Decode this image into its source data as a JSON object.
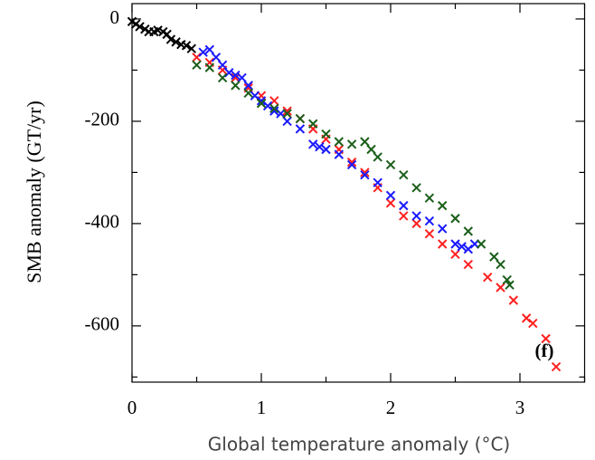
{
  "chart_data": {
    "type": "scatter",
    "x_label": "Global temperature anomaly (°C)",
    "y_label": "SMB anomaly (GT/yr)",
    "annotation": "(f)",
    "xlim": [
      0,
      3.5
    ],
    "ylim": [
      -710,
      30
    ],
    "xticks": [
      0,
      1,
      2,
      3
    ],
    "yticks": [
      0,
      -200,
      -400,
      -600
    ],
    "xminorticks": [
      0.5,
      1.5,
      2.5,
      3.5
    ],
    "yminorticks": [
      -100,
      -300,
      -500,
      -700
    ],
    "series": [
      {
        "color": "#000000",
        "x": [
          0,
          0.03,
          0.06,
          0.1,
          0.13,
          0.17,
          0.2,
          0.24,
          0.27,
          0.3,
          0.34,
          0.38,
          0.42,
          0.46
        ],
        "values": [
          -5,
          -10,
          -15,
          -20,
          -25,
          -25,
          -22,
          -25,
          -30,
          -40,
          -45,
          -50,
          -52,
          -58
        ]
      },
      {
        "color": "#ff2020",
        "x": [
          0.5,
          0.6,
          0.7,
          0.8,
          0.9,
          1.0,
          1.1,
          1.2,
          1.3,
          1.4,
          1.5,
          1.6,
          1.7,
          1.8,
          1.9,
          2.0,
          2.1,
          2.2,
          2.3,
          2.4,
          2.5,
          2.6,
          2.75,
          2.85,
          2.95,
          3.05,
          3.1,
          3.2,
          3.28
        ],
        "values": [
          -75,
          -85,
          -100,
          -115,
          -135,
          -150,
          -160,
          -180,
          -195,
          -215,
          -235,
          -255,
          -280,
          -300,
          -330,
          -360,
          -385,
          -400,
          -420,
          -440,
          -460,
          -480,
          -505,
          -525,
          -550,
          -585,
          -595,
          -625,
          -680
        ]
      },
      {
        "color": "#1a1aff",
        "x": [
          0.55,
          0.6,
          0.65,
          0.7,
          0.75,
          0.8,
          0.85,
          0.9,
          0.95,
          1.0,
          1.05,
          1.1,
          1.15,
          1.2,
          1.3,
          1.4,
          1.45,
          1.5,
          1.6,
          1.7,
          1.8,
          1.9,
          2.0,
          2.1,
          2.2,
          2.3,
          2.4,
          2.5,
          2.55,
          2.6,
          2.65
        ],
        "values": [
          -65,
          -60,
          -75,
          -90,
          -105,
          -110,
          -115,
          -130,
          -150,
          -160,
          -170,
          -180,
          -185,
          -200,
          -215,
          -245,
          -250,
          -255,
          -265,
          -285,
          -305,
          -320,
          -345,
          -365,
          -385,
          -395,
          -410,
          -440,
          -445,
          -450,
          -440
        ]
      },
      {
        "color": "#1a5e1a",
        "x": [
          0.5,
          0.6,
          0.7,
          0.8,
          0.9,
          1.0,
          1.1,
          1.2,
          1.3,
          1.4,
          1.5,
          1.6,
          1.7,
          1.8,
          1.85,
          1.9,
          2.0,
          2.1,
          2.2,
          2.3,
          2.4,
          2.5,
          2.6,
          2.7,
          2.8,
          2.85,
          2.9,
          2.92
        ],
        "values": [
          -90,
          -95,
          -115,
          -130,
          -145,
          -165,
          -175,
          -185,
          -195,
          -205,
          -225,
          -240,
          -245,
          -240,
          -255,
          -270,
          -285,
          -305,
          -330,
          -350,
          -365,
          -390,
          -415,
          -440,
          -465,
          -480,
          -510,
          -520
        ]
      }
    ]
  }
}
